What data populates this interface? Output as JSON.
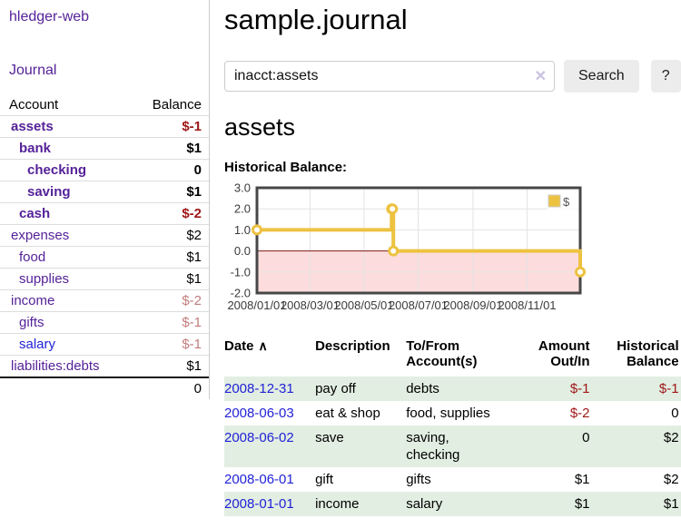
{
  "app": {
    "brand": "hledger-web"
  },
  "sidebar": {
    "nav_journal": "Journal",
    "table": {
      "account": "Account",
      "balance": "Balance"
    },
    "accounts": [
      {
        "name": "assets",
        "balance": "$-1"
      },
      {
        "name": "bank",
        "balance": "$1"
      },
      {
        "name": "checking",
        "balance": "0"
      },
      {
        "name": "saving",
        "balance": "$1"
      },
      {
        "name": "cash",
        "balance": "$-2"
      },
      {
        "name": "expenses",
        "balance": "$2"
      },
      {
        "name": "food",
        "balance": "$1"
      },
      {
        "name": "supplies",
        "balance": "$1"
      },
      {
        "name": "income",
        "balance": "$-2"
      },
      {
        "name": "gifts",
        "balance": "$-1"
      },
      {
        "name": "salary",
        "balance": "$-1"
      },
      {
        "name": "liabilities:debts",
        "balance": "$1"
      }
    ],
    "total": "0"
  },
  "header": {
    "title": "sample.journal"
  },
  "search": {
    "value": "inacct:assets",
    "button": "Search",
    "help_button": "?"
  },
  "icons": {
    "clear_x": "✕",
    "sort_asc": "∧"
  },
  "account_page": {
    "title": "assets",
    "chart_label": "Historical Balance:"
  },
  "chart_data": {
    "type": "line",
    "step": true,
    "title": "Historical Balance",
    "ylim": [
      -2,
      3
    ],
    "y_ticks": [
      -2,
      -1,
      0,
      1,
      2,
      3
    ],
    "x_range": [
      "2008-01-01",
      "2008-12-31"
    ],
    "x_ticks": [
      {
        "date": "2008-01-01",
        "label": "2008/01/01"
      },
      {
        "date": "2008-03-01",
        "label": "2008/03/01"
      },
      {
        "date": "2008-05-01",
        "label": "2008/05/01"
      },
      {
        "date": "2008-07-01",
        "label": "2008/07/01"
      },
      {
        "date": "2008-09-01",
        "label": "2008/09/01"
      },
      {
        "date": "2008-11-01",
        "label": "2008/11/01"
      }
    ],
    "series": [
      {
        "name": "$",
        "color": "#EDC240",
        "points": [
          [
            "2008-01-01",
            1
          ],
          [
            "2008-06-01",
            2
          ],
          [
            "2008-06-02",
            2
          ],
          [
            "2008-06-03",
            0
          ],
          [
            "2008-12-31",
            -1
          ]
        ]
      }
    ],
    "negative_fill": "#fcdcdc",
    "zero_line_color": "#7d1a1a",
    "legend": {
      "position": "top-right",
      "label": "$"
    }
  },
  "register": {
    "headers": {
      "date": "Date",
      "description": "Description",
      "accounts": "To/From Account(s)",
      "amount": "Amount Out/In",
      "balance": "Historical Balance"
    },
    "rows": [
      {
        "date": "2008-12-31",
        "description": "pay off",
        "accounts": "debts",
        "amount": "$-1",
        "balance": "$-1"
      },
      {
        "date": "2008-06-03",
        "description": "eat & shop",
        "accounts": "food, supplies",
        "amount": "$-2",
        "balance": "0"
      },
      {
        "date": "2008-06-02",
        "description": "save",
        "accounts": "saving, checking",
        "amount": "0",
        "balance": "$2"
      },
      {
        "date": "2008-06-01",
        "description": "gift",
        "accounts": "gifts",
        "amount": "$1",
        "balance": "$2"
      },
      {
        "date": "2008-01-01",
        "description": "income",
        "accounts": "salary",
        "amount": "$1",
        "balance": "$1"
      }
    ]
  }
}
